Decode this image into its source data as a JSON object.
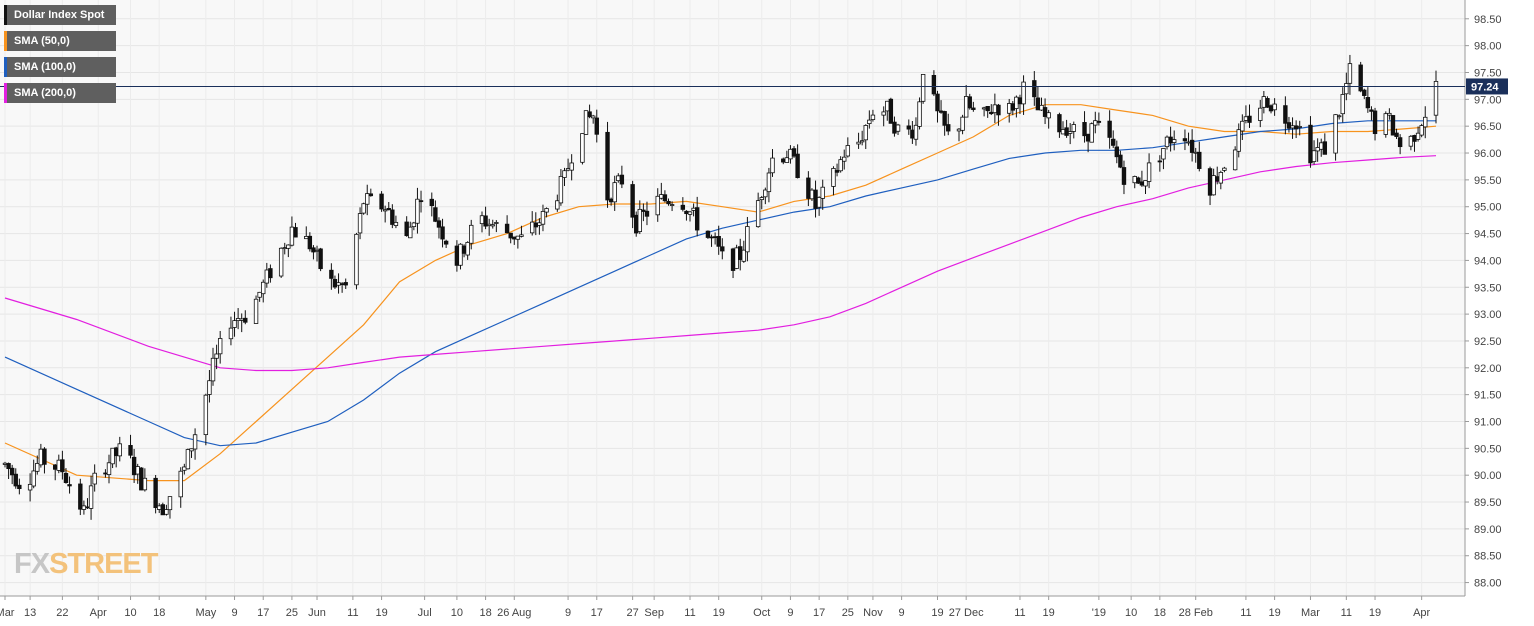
{
  "legend": [
    {
      "label": "Dollar Index Spot",
      "color": "#111111"
    },
    {
      "label": "SMA (50,0)",
      "color": "#f7931e"
    },
    {
      "label": "SMA (100,0)",
      "color": "#1f5fbf"
    },
    {
      "label": "SMA (200,0)",
      "color": "#e21fe0"
    }
  ],
  "logo": {
    "part1": "FX",
    "part2": "STREET"
  },
  "chart_data": {
    "type": "candlestick",
    "title": "",
    "series_name": "Dollar Index Spot",
    "ylim": [
      87.75,
      98.85
    ],
    "y_ticks": [
      "88.00",
      "88.50",
      "89.00",
      "89.50",
      "90.00",
      "90.50",
      "91.00",
      "91.50",
      "92.00",
      "92.50",
      "93.00",
      "93.50",
      "94.00",
      "94.50",
      "95.00",
      "95.50",
      "96.00",
      "96.50",
      "97.00",
      "97.50",
      "98.00",
      "98.50"
    ],
    "x_ticks": [
      {
        "label": "Mar",
        "day": 0
      },
      {
        "label": "13",
        "day": 7
      },
      {
        "label": "22",
        "day": 16
      },
      {
        "label": "Apr",
        "day": 26
      },
      {
        "label": "10",
        "day": 35
      },
      {
        "label": "18",
        "day": 43
      },
      {
        "label": "May",
        "day": 56
      },
      {
        "label": "9",
        "day": 64
      },
      {
        "label": "17",
        "day": 72
      },
      {
        "label": "25",
        "day": 80
      },
      {
        "label": "Jun",
        "day": 87
      },
      {
        "label": "11",
        "day": 97
      },
      {
        "label": "19",
        "day": 105
      },
      {
        "label": "Jul",
        "day": 117
      },
      {
        "label": "10",
        "day": 126
      },
      {
        "label": "18",
        "day": 134
      },
      {
        "label": "26 Aug",
        "day": 142
      },
      {
        "label": "9",
        "day": 157
      },
      {
        "label": "17",
        "day": 165
      },
      {
        "label": "27",
        "day": 175
      },
      {
        "label": "Sep",
        "day": 181
      },
      {
        "label": "11",
        "day": 191
      },
      {
        "label": "19",
        "day": 199
      },
      {
        "label": "Oct",
        "day": 211
      },
      {
        "label": "9",
        "day": 219
      },
      {
        "label": "17",
        "day": 227
      },
      {
        "label": "25",
        "day": 235
      },
      {
        "label": "Nov",
        "day": 242
      },
      {
        "label": "9",
        "day": 250
      },
      {
        "label": "19",
        "day": 260
      },
      {
        "label": "27 Dec",
        "day": 268
      },
      {
        "label": "11",
        "day": 283
      },
      {
        "label": "19",
        "day": 291
      },
      {
        "label": "'19",
        "day": 305
      },
      {
        "label": "10",
        "day": 314
      },
      {
        "label": "18",
        "day": 322
      },
      {
        "label": "28 Feb",
        "day": 332
      },
      {
        "label": "11",
        "day": 346
      },
      {
        "label": "19",
        "day": 354
      },
      {
        "label": "Mar",
        "day": 364
      },
      {
        "label": "11",
        "day": 374
      },
      {
        "label": "19",
        "day": 382
      },
      {
        "label": "Apr",
        "day": 395
      }
    ],
    "x_day_span": [
      0,
      399
    ],
    "current_price": 97.24,
    "grid": true,
    "candle_anchors": [
      [
        0,
        90.2
      ],
      [
        5,
        89.8
      ],
      [
        10,
        90.3
      ],
      [
        16,
        90.1
      ],
      [
        22,
        89.3
      ],
      [
        26,
        90.1
      ],
      [
        33,
        90.5
      ],
      [
        38,
        89.9
      ],
      [
        44,
        89.4
      ],
      [
        50,
        90.1
      ],
      [
        53,
        90.8
      ],
      [
        58,
        92.0
      ],
      [
        63,
        92.9
      ],
      [
        68,
        93.0
      ],
      [
        74,
        93.8
      ],
      [
        80,
        94.6
      ],
      [
        85,
        94.3
      ],
      [
        90,
        93.6
      ],
      [
        95,
        93.5
      ],
      [
        100,
        95.1
      ],
      [
        106,
        95.0
      ],
      [
        112,
        94.4
      ],
      [
        116,
        95.3
      ],
      [
        120,
        94.8
      ],
      [
        126,
        94.0
      ],
      [
        132,
        94.8
      ],
      [
        138,
        94.6
      ],
      [
        144,
        94.4
      ],
      [
        150,
        94.8
      ],
      [
        156,
        95.5
      ],
      [
        160,
        96.5
      ],
      [
        164,
        96.7
      ],
      [
        168,
        95.2
      ],
      [
        172,
        95.5
      ],
      [
        176,
        94.7
      ],
      [
        182,
        95.1
      ],
      [
        188,
        95.2
      ],
      [
        195,
        94.5
      ],
      [
        198,
        94.3
      ],
      [
        201,
        93.9
      ],
      [
        205,
        94.1
      ],
      [
        210,
        95.1
      ],
      [
        214,
        95.9
      ],
      [
        218,
        96.0
      ],
      [
        222,
        95.6
      ],
      [
        226,
        95.0
      ],
      [
        230,
        95.4
      ],
      [
        234,
        96.0
      ],
      [
        238,
        96.2
      ],
      [
        242,
        96.8
      ],
      [
        246,
        96.8
      ],
      [
        250,
        96.3
      ],
      [
        254,
        96.5
      ],
      [
        256,
        97.6
      ],
      [
        260,
        96.7
      ],
      [
        264,
        96.2
      ],
      [
        268,
        96.9
      ],
      [
        272,
        96.6
      ],
      [
        276,
        96.9
      ],
      [
        280,
        96.8
      ],
      [
        284,
        97.2
      ],
      [
        288,
        96.8
      ],
      [
        292,
        96.5
      ],
      [
        296,
        96.5
      ],
      [
        300,
        96.3
      ],
      [
        304,
        96.5
      ],
      [
        308,
        96.2
      ],
      [
        312,
        95.6
      ],
      [
        316,
        95.4
      ],
      [
        320,
        95.8
      ],
      [
        324,
        96.2
      ],
      [
        328,
        96.5
      ],
      [
        332,
        96.0
      ],
      [
        334,
        95.7
      ],
      [
        336,
        95.4
      ],
      [
        340,
        95.8
      ],
      [
        344,
        96.3
      ],
      [
        348,
        96.8
      ],
      [
        352,
        97.0
      ],
      [
        356,
        96.7
      ],
      [
        360,
        96.6
      ],
      [
        364,
        96.0
      ],
      [
        368,
        96.1
      ],
      [
        372,
        96.8
      ],
      [
        375,
        97.5
      ],
      [
        378,
        97.1
      ],
      [
        382,
        96.5
      ],
      [
        386,
        96.6
      ],
      [
        390,
        96.0
      ],
      [
        394,
        96.5
      ],
      [
        398,
        97.0
      ],
      [
        399,
        97.24
      ]
    ],
    "sma50": [
      [
        0,
        90.6
      ],
      [
        20,
        90.0
      ],
      [
        40,
        89.9
      ],
      [
        50,
        89.9
      ],
      [
        60,
        90.4
      ],
      [
        70,
        91.0
      ],
      [
        80,
        91.6
      ],
      [
        90,
        92.2
      ],
      [
        100,
        92.8
      ],
      [
        110,
        93.6
      ],
      [
        120,
        94.0
      ],
      [
        130,
        94.3
      ],
      [
        140,
        94.5
      ],
      [
        150,
        94.8
      ],
      [
        160,
        95.0
      ],
      [
        170,
        95.05
      ],
      [
        180,
        95.05
      ],
      [
        190,
        95.1
      ],
      [
        200,
        95.0
      ],
      [
        210,
        94.9
      ],
      [
        220,
        95.1
      ],
      [
        230,
        95.2
      ],
      [
        240,
        95.4
      ],
      [
        250,
        95.7
      ],
      [
        260,
        96.0
      ],
      [
        270,
        96.3
      ],
      [
        280,
        96.7
      ],
      [
        290,
        96.9
      ],
      [
        300,
        96.9
      ],
      [
        310,
        96.8
      ],
      [
        320,
        96.7
      ],
      [
        330,
        96.5
      ],
      [
        340,
        96.4
      ],
      [
        350,
        96.4
      ],
      [
        360,
        96.35
      ],
      [
        370,
        96.4
      ],
      [
        380,
        96.4
      ],
      [
        390,
        96.45
      ],
      [
        399,
        96.5
      ]
    ],
    "sma100": [
      [
        0,
        92.2
      ],
      [
        20,
        91.6
      ],
      [
        40,
        91.0
      ],
      [
        50,
        90.7
      ],
      [
        60,
        90.55
      ],
      [
        70,
        90.6
      ],
      [
        80,
        90.8
      ],
      [
        90,
        91.0
      ],
      [
        100,
        91.4
      ],
      [
        110,
        91.9
      ],
      [
        120,
        92.3
      ],
      [
        130,
        92.6
      ],
      [
        140,
        92.9
      ],
      [
        150,
        93.2
      ],
      [
        160,
        93.5
      ],
      [
        170,
        93.8
      ],
      [
        180,
        94.1
      ],
      [
        190,
        94.4
      ],
      [
        200,
        94.6
      ],
      [
        210,
        94.75
      ],
      [
        220,
        94.9
      ],
      [
        230,
        95.0
      ],
      [
        240,
        95.2
      ],
      [
        250,
        95.35
      ],
      [
        260,
        95.5
      ],
      [
        270,
        95.7
      ],
      [
        280,
        95.9
      ],
      [
        290,
        96.0
      ],
      [
        300,
        96.05
      ],
      [
        310,
        96.05
      ],
      [
        320,
        96.1
      ],
      [
        330,
        96.2
      ],
      [
        340,
        96.3
      ],
      [
        350,
        96.4
      ],
      [
        360,
        96.45
      ],
      [
        370,
        96.55
      ],
      [
        380,
        96.6
      ],
      [
        390,
        96.6
      ],
      [
        399,
        96.6
      ]
    ],
    "sma200": [
      [
        0,
        93.3
      ],
      [
        20,
        92.9
      ],
      [
        40,
        92.4
      ],
      [
        50,
        92.2
      ],
      [
        60,
        92.0
      ],
      [
        70,
        91.95
      ],
      [
        80,
        91.95
      ],
      [
        90,
        92.0
      ],
      [
        100,
        92.1
      ],
      [
        110,
        92.2
      ],
      [
        120,
        92.25
      ],
      [
        130,
        92.3
      ],
      [
        140,
        92.35
      ],
      [
        150,
        92.4
      ],
      [
        160,
        92.45
      ],
      [
        170,
        92.5
      ],
      [
        180,
        92.55
      ],
      [
        190,
        92.6
      ],
      [
        200,
        92.65
      ],
      [
        210,
        92.7
      ],
      [
        220,
        92.8
      ],
      [
        230,
        92.95
      ],
      [
        240,
        93.2
      ],
      [
        250,
        93.5
      ],
      [
        260,
        93.8
      ],
      [
        270,
        94.05
      ],
      [
        280,
        94.3
      ],
      [
        290,
        94.55
      ],
      [
        300,
        94.8
      ],
      [
        310,
        95.0
      ],
      [
        320,
        95.15
      ],
      [
        330,
        95.35
      ],
      [
        340,
        95.5
      ],
      [
        350,
        95.65
      ],
      [
        360,
        95.75
      ],
      [
        370,
        95.82
      ],
      [
        380,
        95.87
      ],
      [
        390,
        95.92
      ],
      [
        399,
        95.95
      ]
    ]
  }
}
